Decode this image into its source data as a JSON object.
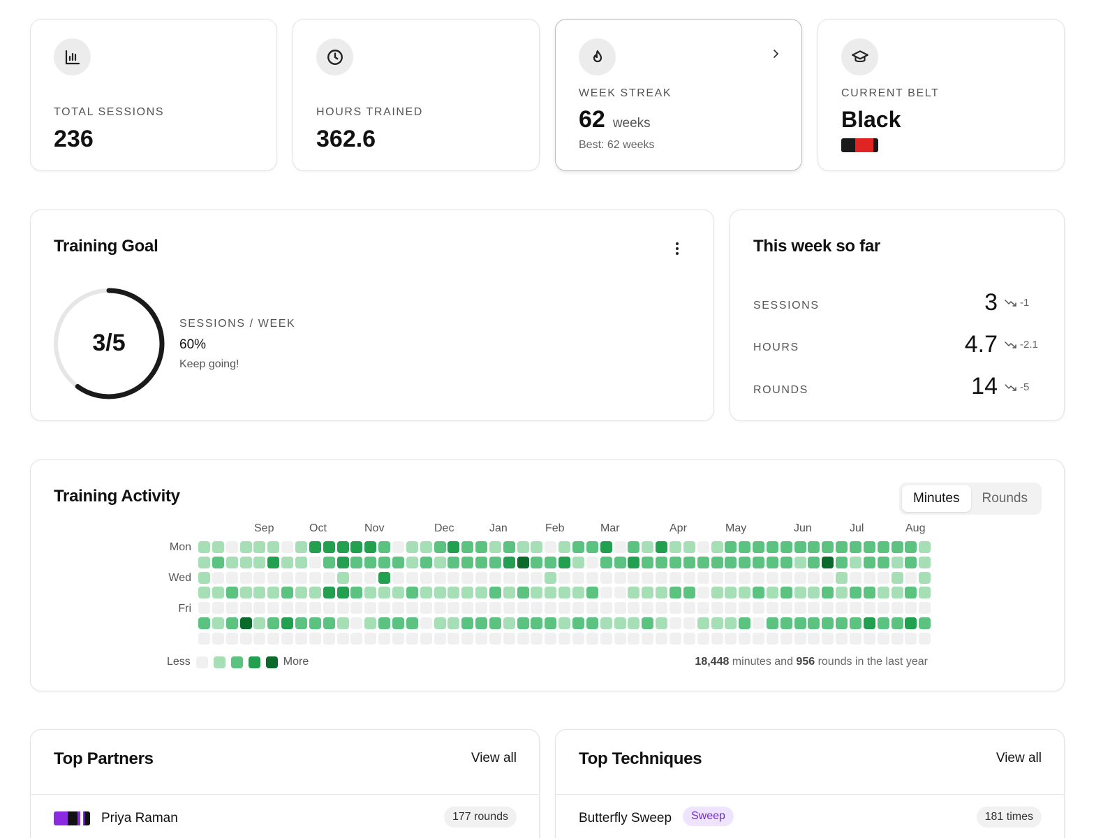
{
  "stats": [
    {
      "label": "TOTAL SESSIONS",
      "value": "236",
      "icon": "bar-chart-icon"
    },
    {
      "label": "HOURS TRAINED",
      "value": "362.6",
      "icon": "clock-icon"
    },
    {
      "label": "WEEK STREAK",
      "value": "62",
      "unit": "weeks",
      "sub": "Best: 62 weeks",
      "icon": "flame-icon"
    },
    {
      "label": "CURRENT BELT",
      "value": "Black",
      "icon": "graduation-cap-icon"
    }
  ],
  "goal": {
    "title": "Training Goal",
    "ring_text": "3/5",
    "progress": 0.6,
    "metric": "SESSIONS / WEEK",
    "percent": "60%",
    "message": "Keep going!"
  },
  "week": {
    "title": "This week so far",
    "rows": [
      {
        "label": "SESSIONS",
        "value": "3",
        "delta": "-1"
      },
      {
        "label": "HOURS",
        "value": "4.7",
        "delta": "-2.1"
      },
      {
        "label": "ROUNDS",
        "value": "14",
        "delta": "-5"
      }
    ]
  },
  "activity": {
    "title": "Training Activity",
    "toggle": [
      "Minutes",
      "Rounds"
    ],
    "toggle_active": 0,
    "months": [
      "Sep",
      "Oct",
      "Nov",
      "Dec",
      "Jan",
      "Feb",
      "Mar",
      "Apr",
      "May",
      "Jun",
      "Jul",
      "Aug"
    ],
    "days": [
      "Mon",
      "Wed",
      "Fri"
    ],
    "legend_less": "Less",
    "legend_more": "More",
    "summary_minutes": "18,448",
    "summary_mid": " minutes and ",
    "summary_rounds": "956",
    "summary_tail": " rounds in the last year",
    "colors": [
      "#f0f0f0",
      "#a6dfb5",
      "#5cc27f",
      "#23a04f",
      "#0a6a2a"
    ],
    "grid": [
      "11011101333332011232212110122302131101222222222222221",
      "12111311023222212122223422310223222222222221242122121",
      "10000000001003000000000001000000000000000000001000101",
      "11211121133211121111121211112001112201112121121221121",
      "00000000000000000000000000000000000000000000000000000",
      "21241232221012220112221222122111210011120222222232232",
      "00000000000000000000000000000000000000000000000000000"
    ]
  },
  "partners": {
    "title": "Top Partners",
    "view_all": "View all",
    "first_name": "Priya Raman",
    "first_count": "177 rounds"
  },
  "techniques": {
    "title": "Top Techniques",
    "view_all": "View all",
    "first_name": "Butterfly Sweep",
    "first_tag": "Sweep",
    "first_count": "181 times"
  }
}
